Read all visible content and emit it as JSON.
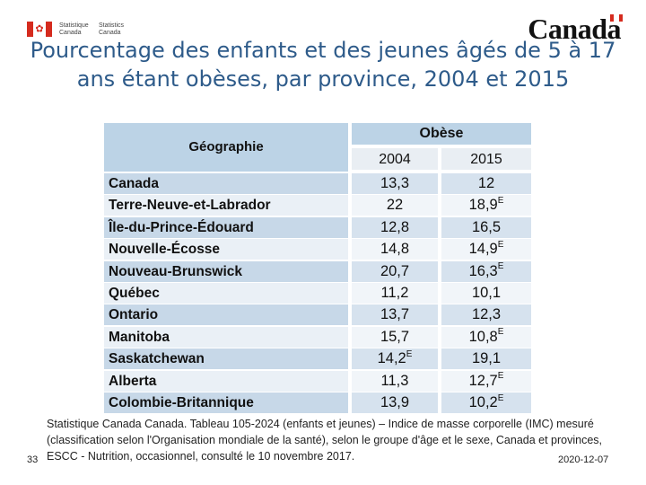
{
  "header": {
    "agency_fr_line1": "Statistique",
    "agency_fr_line2": "Canada",
    "agency_en_line1": "Statistics",
    "agency_en_line2": "Canada",
    "wordmark": "Canada",
    "flag_icon": "maple-leaf-flag-icon"
  },
  "title": "Pourcentage des enfants et des jeunes âgés de 5 à 17 ans étant obèses, par province, 2004 et 2015",
  "table": {
    "geo_header": "Géographie",
    "group_header": "Obèse",
    "year_a": "2004",
    "year_b": "2015",
    "rows": [
      {
        "geo": "Canada",
        "v2004": "13,3",
        "v2004_flag": "",
        "v2015": "12",
        "v2015_flag": ""
      },
      {
        "geo": "Terre-Neuve-et-Labrador",
        "v2004": "22",
        "v2004_flag": "",
        "v2015": "18,9",
        "v2015_flag": "E"
      },
      {
        "geo": "Île-du-Prince-Édouard",
        "v2004": "12,8",
        "v2004_flag": "",
        "v2015": "16,5",
        "v2015_flag": ""
      },
      {
        "geo": "Nouvelle-Écosse",
        "v2004": "14,8",
        "v2004_flag": "",
        "v2015": "14,9",
        "v2015_flag": "E"
      },
      {
        "geo": "Nouveau-Brunswick",
        "v2004": "20,7",
        "v2004_flag": "",
        "v2015": "16,3",
        "v2015_flag": "E"
      },
      {
        "geo": "Québec",
        "v2004": "11,2",
        "v2004_flag": "",
        "v2015": "10,1",
        "v2015_flag": ""
      },
      {
        "geo": "Ontario",
        "v2004": "13,7",
        "v2004_flag": "",
        "v2015": "12,3",
        "v2015_flag": ""
      },
      {
        "geo": "Manitoba",
        "v2004": "15,7",
        "v2004_flag": "",
        "v2015": "10,8",
        "v2015_flag": "E"
      },
      {
        "geo": "Saskatchewan",
        "v2004": "14,2",
        "v2004_flag": "E",
        "v2015": "19,1",
        "v2015_flag": ""
      },
      {
        "geo": "Alberta",
        "v2004": "11,3",
        "v2004_flag": "",
        "v2015": "12,7",
        "v2015_flag": "E"
      },
      {
        "geo": "Colombie-Britannique",
        "v2004": "13,9",
        "v2004_flag": "",
        "v2015": "10,2",
        "v2015_flag": "E"
      }
    ]
  },
  "footer": {
    "source": "Statistique Canada Canada. Tableau 105-2024 (enfants et jeunes) – Indice de masse corporelle (IMC) mesuré (classification selon l'Organisation mondiale de la santé), selon le groupe d'âge et le sexe, Canada et provinces, ESCC - Nutrition, occasionnel, consulté le 10 novembre 2017.",
    "page_number": "33",
    "date": "2020-12-07"
  }
}
